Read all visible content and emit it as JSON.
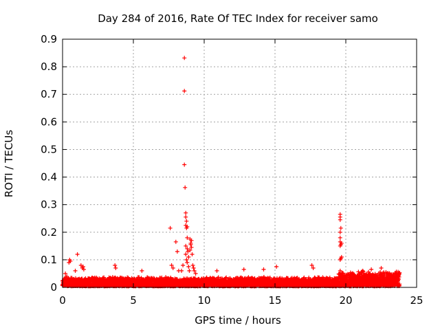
{
  "chart_data": {
    "type": "scatter",
    "title": "Day 284 of 2016, Rate Of TEC Index for receiver samo",
    "xlabel": "GPS time / hours",
    "ylabel": "ROTI / TECUs",
    "xlim": [
      0,
      25
    ],
    "ylim": [
      0,
      0.9
    ],
    "xticks": [
      0,
      5,
      10,
      15,
      20,
      25
    ],
    "yticks": [
      0,
      0.1,
      0.2,
      0.3,
      0.4,
      0.5,
      0.6,
      0.7,
      0.8,
      0.9
    ],
    "grid": true,
    "marker": "+",
    "color": "#ff0000",
    "series": [
      {
        "name": "ROTI",
        "baseline": {
          "x_start": 0.0,
          "x_end": 23.8,
          "typical_max": 0.035,
          "upper_envelope_late_day": 0.055
        },
        "points": [
          [
            0.1,
            0.03
          ],
          [
            0.2,
            0.05
          ],
          [
            0.3,
            0.04
          ],
          [
            0.45,
            0.09
          ],
          [
            0.5,
            0.1
          ],
          [
            0.55,
            0.095
          ],
          [
            0.9,
            0.06
          ],
          [
            1.05,
            0.12
          ],
          [
            1.3,
            0.08
          ],
          [
            1.4,
            0.07
          ],
          [
            1.45,
            0.075
          ],
          [
            1.5,
            0.065
          ],
          [
            3.7,
            0.08
          ],
          [
            3.75,
            0.07
          ],
          [
            5.6,
            0.06
          ],
          [
            7.6,
            0.215
          ],
          [
            7.7,
            0.08
          ],
          [
            7.8,
            0.07
          ],
          [
            8.0,
            0.165
          ],
          [
            8.1,
            0.13
          ],
          [
            8.2,
            0.06
          ],
          [
            8.4,
            0.06
          ],
          [
            8.5,
            0.08
          ],
          [
            8.6,
            0.832
          ],
          [
            8.6,
            0.712
          ],
          [
            8.6,
            0.445
          ],
          [
            8.65,
            0.362
          ],
          [
            8.7,
            0.27
          ],
          [
            8.7,
            0.255
          ],
          [
            8.75,
            0.24
          ],
          [
            8.7,
            0.225
          ],
          [
            8.75,
            0.215
          ],
          [
            8.8,
            0.22
          ],
          [
            8.8,
            0.18
          ],
          [
            8.7,
            0.15
          ],
          [
            8.8,
            0.14
          ],
          [
            8.85,
            0.13
          ],
          [
            8.7,
            0.12
          ],
          [
            8.9,
            0.11
          ],
          [
            8.75,
            0.1
          ],
          [
            8.8,
            0.09
          ],
          [
            8.9,
            0.075
          ],
          [
            8.95,
            0.06
          ],
          [
            9.0,
            0.175
          ],
          [
            9.05,
            0.16
          ],
          [
            9.1,
            0.17
          ],
          [
            9.05,
            0.155
          ],
          [
            9.1,
            0.145
          ],
          [
            9.0,
            0.135
          ],
          [
            9.15,
            0.12
          ],
          [
            9.2,
            0.08
          ],
          [
            9.25,
            0.07
          ],
          [
            9.3,
            0.06
          ],
          [
            9.4,
            0.05
          ],
          [
            10.9,
            0.06
          ],
          [
            12.8,
            0.065
          ],
          [
            14.2,
            0.065
          ],
          [
            15.1,
            0.075
          ],
          [
            17.6,
            0.08
          ],
          [
            17.7,
            0.07
          ],
          [
            19.6,
            0.265
          ],
          [
            19.6,
            0.255
          ],
          [
            19.6,
            0.245
          ],
          [
            19.65,
            0.215
          ],
          [
            19.6,
            0.2
          ],
          [
            19.6,
            0.18
          ],
          [
            19.6,
            0.165
          ],
          [
            19.7,
            0.16
          ],
          [
            19.65,
            0.155
          ],
          [
            19.6,
            0.15
          ],
          [
            19.6,
            0.1
          ],
          [
            19.65,
            0.105
          ],
          [
            19.7,
            0.11
          ],
          [
            19.6,
            0.06
          ],
          [
            21.2,
            0.06
          ],
          [
            21.8,
            0.065
          ],
          [
            22.5,
            0.07
          ],
          [
            23.5,
            0.05
          ]
        ]
      }
    ]
  }
}
